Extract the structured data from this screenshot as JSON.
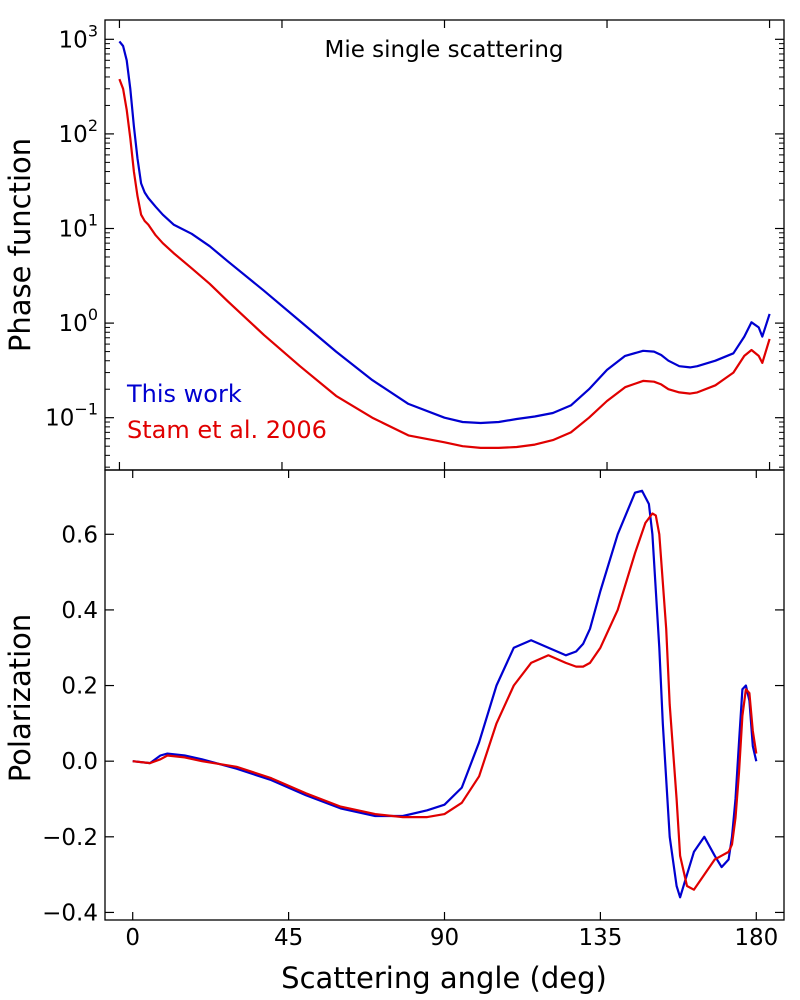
{
  "figure": {
    "xlabel": "Scattering angle (deg)"
  },
  "colors": {
    "this_work": "#0000d0",
    "stam": "#e00000",
    "axis": "#000000"
  },
  "chart_data": [
    {
      "type": "line",
      "panel": "top",
      "title": "Mie single scattering",
      "ylabel": "Phase function",
      "yscale": "log",
      "xlim": [
        -4,
        184
      ],
      "ylim": [
        0.028,
        1600
      ],
      "xticks": [
        0,
        45,
        90,
        135,
        180
      ],
      "yticks": [
        {
          "value": 0.1,
          "base": "10",
          "exp": "−1"
        },
        {
          "value": 1,
          "base": "10",
          "exp": "0"
        },
        {
          "value": 10,
          "base": "10",
          "exp": "1"
        },
        {
          "value": 100,
          "base": "10",
          "exp": "2"
        },
        {
          "value": 1000,
          "base": "10",
          "exp": "3"
        }
      ],
      "legend": [
        {
          "label": "This work",
          "color": "#0000d0"
        },
        {
          "label": "Stam et al. 2006",
          "color": "#e00000"
        }
      ],
      "legend_position": "lower-left",
      "series": [
        {
          "name": "This work",
          "color": "#0000d0",
          "x": [
            0,
            1,
            2,
            3,
            4,
            5,
            6,
            7,
            8,
            10,
            12,
            15,
            20,
            25,
            30,
            40,
            50,
            60,
            70,
            80,
            90,
            95,
            100,
            105,
            110,
            115,
            120,
            125,
            130,
            135,
            140,
            145,
            148,
            150,
            152,
            155,
            158,
            160,
            165,
            170,
            173,
            175,
            177,
            178,
            180
          ],
          "y": [
            950,
            850,
            600,
            300,
            120,
            55,
            30,
            24,
            21,
            17,
            14,
            11,
            8.8,
            6.5,
            4.5,
            2.2,
            1.05,
            0.5,
            0.25,
            0.14,
            0.1,
            0.09,
            0.088,
            0.09,
            0.097,
            0.103,
            0.112,
            0.135,
            0.2,
            0.32,
            0.45,
            0.51,
            0.5,
            0.46,
            0.4,
            0.35,
            0.34,
            0.35,
            0.4,
            0.48,
            0.72,
            1.02,
            0.9,
            0.72,
            1.25
          ]
        },
        {
          "name": "Stam et al. 2006",
          "color": "#e00000",
          "x": [
            0,
            1,
            2,
            3,
            4,
            5,
            6,
            7,
            8,
            10,
            12,
            15,
            20,
            25,
            30,
            40,
            50,
            60,
            70,
            80,
            90,
            95,
            100,
            105,
            110,
            115,
            120,
            125,
            130,
            135,
            140,
            145,
            148,
            150,
            152,
            155,
            158,
            160,
            165,
            170,
            173,
            175,
            177,
            178,
            180
          ],
          "y": [
            380,
            300,
            180,
            90,
            40,
            22,
            14,
            12,
            11,
            8.5,
            7,
            5.5,
            3.8,
            2.6,
            1.7,
            0.75,
            0.35,
            0.17,
            0.1,
            0.065,
            0.055,
            0.05,
            0.048,
            0.048,
            0.049,
            0.052,
            0.058,
            0.07,
            0.1,
            0.15,
            0.21,
            0.245,
            0.24,
            0.225,
            0.2,
            0.185,
            0.18,
            0.185,
            0.22,
            0.3,
            0.45,
            0.52,
            0.45,
            0.38,
            0.68
          ]
        }
      ]
    },
    {
      "type": "line",
      "panel": "bottom",
      "title": "",
      "ylabel": "Polarization",
      "xlabel": "Scattering angle (deg)",
      "xlim": [
        -8,
        188
      ],
      "ylim": [
        -0.42,
        0.77
      ],
      "xticks": [
        0,
        45,
        90,
        135,
        180
      ],
      "yticks": [
        -0.4,
        -0.2,
        0.0,
        0.2,
        0.4,
        0.6
      ],
      "ytick_labels": [
        "−0.4",
        "−0.2",
        "0.0",
        "0.2",
        "0.4",
        "0.6"
      ],
      "series": [
        {
          "name": "This work",
          "color": "#0000d0",
          "x": [
            0,
            5,
            8,
            10,
            15,
            20,
            30,
            40,
            50,
            60,
            70,
            78,
            85,
            90,
            95,
            100,
            105,
            110,
            115,
            120,
            125,
            128,
            130,
            132,
            135,
            140,
            145,
            147,
            149,
            150,
            152,
            153,
            155,
            157,
            158,
            160,
            162,
            165,
            168,
            170,
            172,
            173,
            174,
            175,
            176,
            177,
            178,
            179,
            180
          ],
          "y": [
            0,
            -0.005,
            0.015,
            0.02,
            0.015,
            0.005,
            -0.02,
            -0.05,
            -0.09,
            -0.125,
            -0.145,
            -0.145,
            -0.13,
            -0.115,
            -0.07,
            0.05,
            0.2,
            0.3,
            0.32,
            0.3,
            0.28,
            0.29,
            0.31,
            0.35,
            0.45,
            0.6,
            0.71,
            0.715,
            0.68,
            0.6,
            0.3,
            0.1,
            -0.2,
            -0.33,
            -0.36,
            -0.3,
            -0.24,
            -0.2,
            -0.25,
            -0.28,
            -0.26,
            -0.2,
            -0.1,
            0.05,
            0.19,
            0.2,
            0.16,
            0.04,
            0
          ]
        },
        {
          "name": "Stam et al. 2006",
          "color": "#e00000",
          "x": [
            0,
            5,
            8,
            10,
            15,
            20,
            30,
            40,
            50,
            60,
            70,
            78,
            85,
            90,
            95,
            100,
            105,
            110,
            115,
            120,
            125,
            128,
            130,
            132,
            135,
            140,
            145,
            148,
            150,
            151,
            152,
            154,
            155,
            157,
            158,
            160,
            162,
            165,
            168,
            170,
            172,
            173,
            174,
            175,
            176,
            177,
            178,
            179,
            180
          ],
          "y": [
            0,
            -0.005,
            0.005,
            0.015,
            0.01,
            0.0,
            -0.015,
            -0.045,
            -0.085,
            -0.12,
            -0.14,
            -0.148,
            -0.148,
            -0.14,
            -0.11,
            -0.04,
            0.1,
            0.2,
            0.26,
            0.28,
            0.26,
            0.25,
            0.25,
            0.26,
            0.3,
            0.4,
            0.55,
            0.63,
            0.655,
            0.65,
            0.6,
            0.35,
            0.15,
            -0.1,
            -0.25,
            -0.33,
            -0.34,
            -0.3,
            -0.26,
            -0.25,
            -0.24,
            -0.22,
            -0.15,
            -0.03,
            0.12,
            0.19,
            0.18,
            0.08,
            0.02
          ]
        }
      ]
    }
  ]
}
